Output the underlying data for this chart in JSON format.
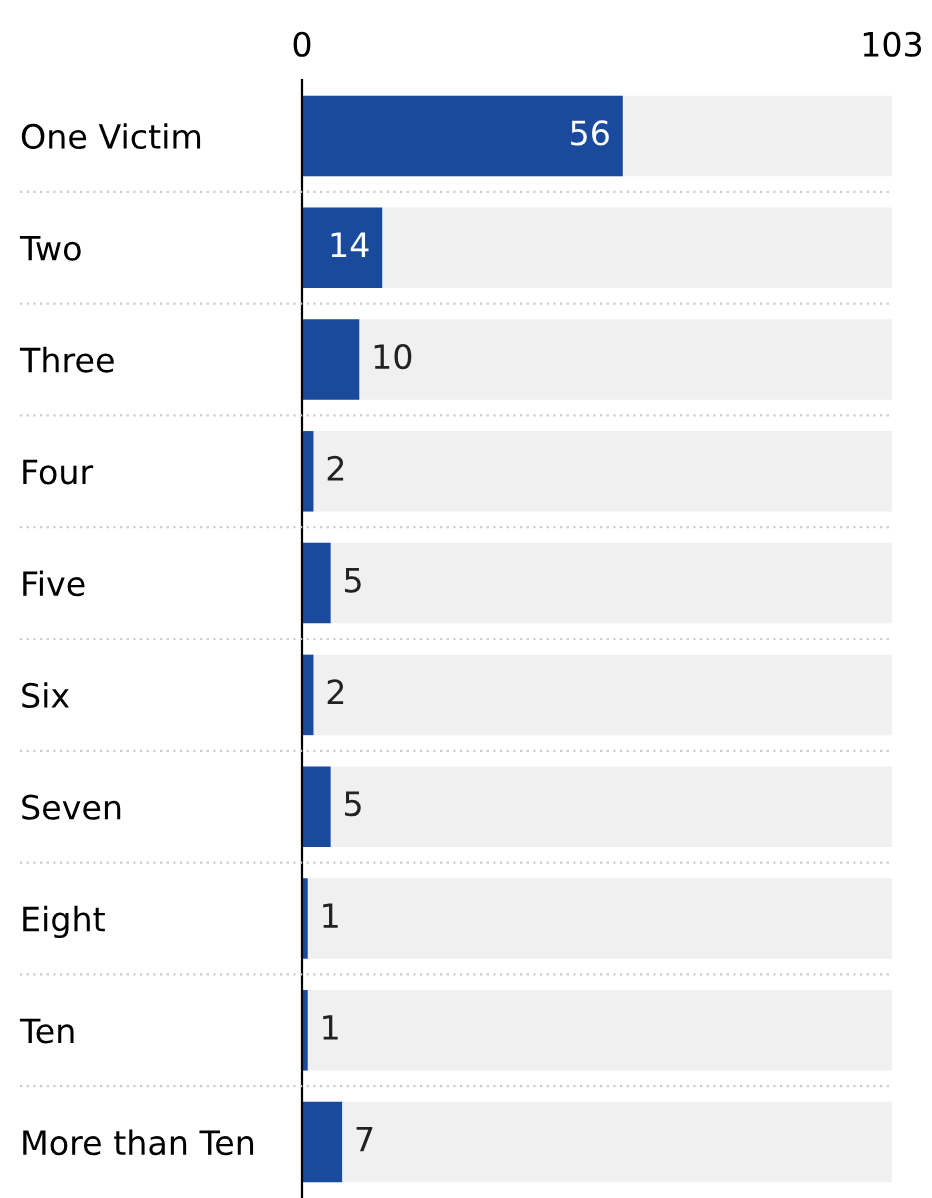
{
  "chart_data": {
    "type": "bar",
    "orientation": "horizontal",
    "categories": [
      "One Victim",
      "Two",
      "Three",
      "Four",
      "Five",
      "Six",
      "Seven",
      "Eight",
      "Ten",
      "More than Ten"
    ],
    "values": [
      56,
      14,
      10,
      2,
      5,
      2,
      5,
      1,
      1,
      7
    ],
    "color": "#1a4a9c",
    "xlim": [
      0,
      103
    ],
    "xticks": [
      0,
      103
    ],
    "data_labels": true,
    "grid": false,
    "legend": false
  }
}
